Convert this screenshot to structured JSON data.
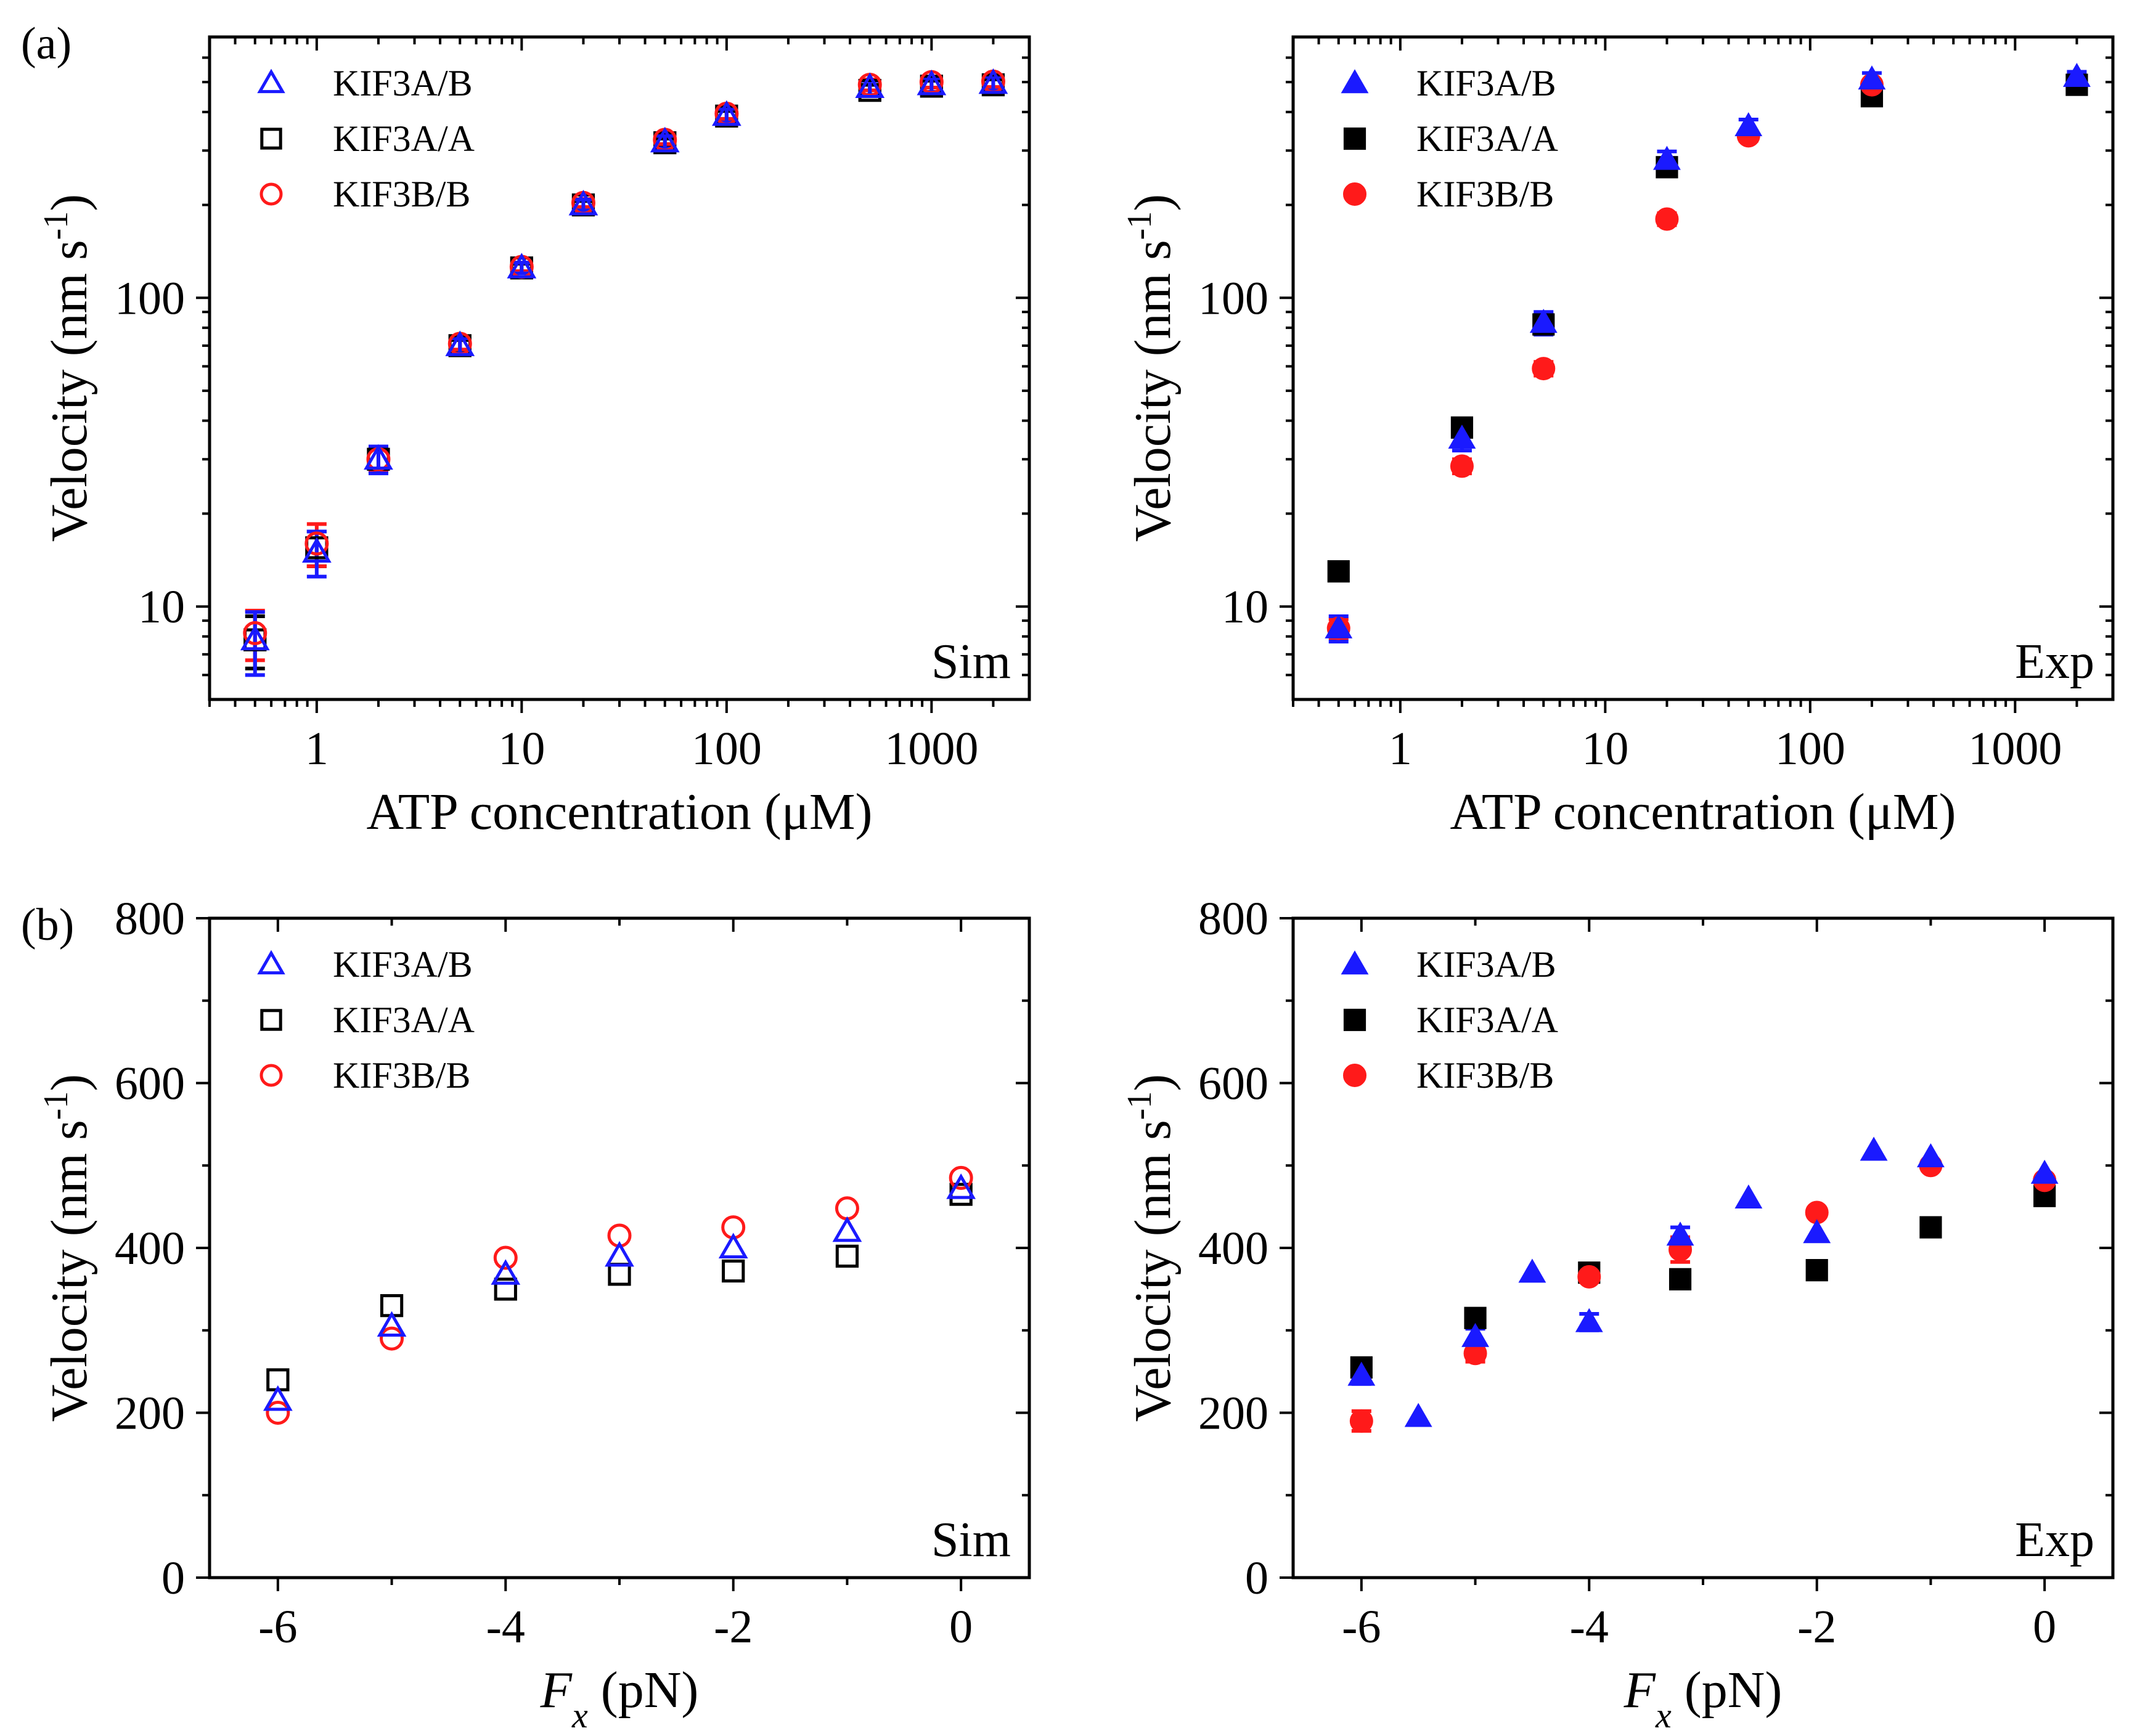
{
  "figure": {
    "panel_tags": [
      "(a)",
      "(b)"
    ],
    "series_colors": {
      "KIF3A/B": "#1a1aff",
      "KIF3A/A": "#000000",
      "KIF3B/B": "#ff1a1a"
    },
    "markers": {
      "KIF3A/B": "triangle",
      "KIF3A/A": "square",
      "KIF3B/B": "circle"
    }
  },
  "chart_data": [
    {
      "id": "a-sim",
      "type": "scatter",
      "panel_tag": "(a)",
      "corner_label": "Sim",
      "marker_fill": "open",
      "xlabel": "ATP concentration (μM)",
      "ylabel_text": "Velocity (nm s",
      "ylabel_sup": "-1",
      "ylabel_close": ")",
      "xscale": "log",
      "yscale": "log",
      "xlim": [
        0.3,
        3000
      ],
      "ylim": [
        5,
        700
      ],
      "xticks": [
        1,
        10,
        100,
        1000
      ],
      "xtick_labels": [
        "1",
        "10",
        "100",
        "1000"
      ],
      "yticks": [
        10,
        100
      ],
      "ytick_labels": [
        "10",
        "100"
      ],
      "legend_position": "top-left",
      "series": [
        {
          "name": "KIF3A/B",
          "points": [
            {
              "x": 0.5,
              "y": 7.8,
              "err": 1.8
            },
            {
              "x": 1,
              "y": 15,
              "err": 2.5
            },
            {
              "x": 2,
              "y": 30,
              "err": 3
            },
            {
              "x": 5,
              "y": 70,
              "err": 4
            },
            {
              "x": 10,
              "y": 125,
              "err": 5
            },
            {
              "x": 20,
              "y": 200,
              "err": 8
            },
            {
              "x": 50,
              "y": 320,
              "err": 15
            },
            {
              "x": 100,
              "y": 390,
              "err": 20
            },
            {
              "x": 500,
              "y": 480,
              "err": 25
            },
            {
              "x": 1000,
              "y": 490,
              "err": 25
            },
            {
              "x": 2000,
              "y": 495,
              "err": 25
            }
          ]
        },
        {
          "name": "KIF3A/A",
          "points": [
            {
              "x": 0.5,
              "y": 7.8,
              "err": 1.5
            },
            {
              "x": 1,
              "y": 15.5,
              "err": 2
            },
            {
              "x": 2,
              "y": 30,
              "err": 2.5
            },
            {
              "x": 5,
              "y": 70,
              "err": 3
            },
            {
              "x": 10,
              "y": 125,
              "err": 4
            },
            {
              "x": 20,
              "y": 200,
              "err": 6
            },
            {
              "x": 50,
              "y": 318,
              "err": 10
            },
            {
              "x": 100,
              "y": 388,
              "err": 15
            },
            {
              "x": 500,
              "y": 470,
              "err": 20
            },
            {
              "x": 1000,
              "y": 485,
              "err": 20
            },
            {
              "x": 2000,
              "y": 490,
              "err": 20
            }
          ]
        },
        {
          "name": "KIF3B/B",
          "points": [
            {
              "x": 0.5,
              "y": 8.2,
              "err": 1.5
            },
            {
              "x": 1,
              "y": 16,
              "err": 2.5
            },
            {
              "x": 2,
              "y": 30,
              "err": 2.5
            },
            {
              "x": 5,
              "y": 71,
              "err": 3
            },
            {
              "x": 10,
              "y": 126,
              "err": 4
            },
            {
              "x": 20,
              "y": 203,
              "err": 6
            },
            {
              "x": 50,
              "y": 325,
              "err": 10
            },
            {
              "x": 100,
              "y": 395,
              "err": 15
            },
            {
              "x": 500,
              "y": 490,
              "err": 20
            },
            {
              "x": 1000,
              "y": 500,
              "err": 20
            },
            {
              "x": 2000,
              "y": 502,
              "err": 20
            }
          ]
        }
      ]
    },
    {
      "id": "a-exp",
      "type": "scatter",
      "panel_tag": "",
      "corner_label": "Exp",
      "marker_fill": "solid",
      "xlabel": "ATP concentration (μM)",
      "ylabel_text": "Velocity (nm s",
      "ylabel_sup": "-1",
      "ylabel_close": ")",
      "xscale": "log",
      "yscale": "log",
      "xlim": [
        0.3,
        3000
      ],
      "ylim": [
        5,
        700
      ],
      "xticks": [
        1,
        10,
        100,
        1000
      ],
      "xtick_labels": [
        "1",
        "10",
        "100",
        "1000"
      ],
      "yticks": [
        10,
        100
      ],
      "ytick_labels": [
        "10",
        "100"
      ],
      "legend_position": "top-left",
      "series": [
        {
          "name": "KIF3A/B",
          "points": [
            {
              "x": 0.5,
              "y": 8.5,
              "err": 0.8
            },
            {
              "x": 2,
              "y": 35,
              "err": 3
            },
            {
              "x": 5,
              "y": 83,
              "err": 7
            },
            {
              "x": 20,
              "y": 280,
              "err": 18
            },
            {
              "x": 50,
              "y": 360,
              "err": 18
            },
            {
              "x": 200,
              "y": 510,
              "err": 25
            },
            {
              "x": 2000,
              "y": 520,
              "err": 20
            }
          ]
        },
        {
          "name": "KIF3A/A",
          "points": [
            {
              "x": 0.5,
              "y": 13,
              "err": 0.8
            },
            {
              "x": 2,
              "y": 38,
              "err": 2
            },
            {
              "x": 5,
              "y": 82,
              "err": 4
            },
            {
              "x": 20,
              "y": 265,
              "err": 15
            },
            {
              "x": 200,
              "y": 450,
              "err": 20
            },
            {
              "x": 2000,
              "y": 490,
              "err": 15
            }
          ]
        },
        {
          "name": "KIF3B/B",
          "points": [
            {
              "x": 0.5,
              "y": 8.5,
              "err": 0.6
            },
            {
              "x": 2,
              "y": 28.5,
              "err": 1.5
            },
            {
              "x": 5,
              "y": 59,
              "err": 3
            },
            {
              "x": 20,
              "y": 180,
              "err": 8
            },
            {
              "x": 50,
              "y": 335,
              "err": 12
            },
            {
              "x": 200,
              "y": 490,
              "err": 15
            }
          ]
        }
      ]
    },
    {
      "id": "b-sim",
      "type": "scatter",
      "panel_tag": "(b)",
      "corner_label": "Sim",
      "marker_fill": "open",
      "xlabel_italic": "F",
      "xlabel_sub": "x",
      "xlabel_rest": " (pN)",
      "ylabel_text": "Velocity (nm s",
      "ylabel_sup": "-1",
      "ylabel_close": ")",
      "xscale": "linear",
      "yscale": "linear",
      "xlim": [
        -6.6,
        0.6
      ],
      "ylim": [
        0,
        800
      ],
      "xticks": [
        -6,
        -4,
        -2,
        0
      ],
      "xtick_labels": [
        "-6",
        "-4",
        "-2",
        "0"
      ],
      "xminor": [
        -5,
        -3,
        -1
      ],
      "yticks": [
        0,
        200,
        400,
        600,
        800
      ],
      "ytick_labels": [
        "0",
        "200",
        "400",
        "600",
        "800"
      ],
      "yminor": [
        100,
        300,
        500,
        700
      ],
      "legend_position": "top-left",
      "series": [
        {
          "name": "KIF3A/B",
          "points": [
            {
              "x": -6,
              "y": 215
            },
            {
              "x": -5,
              "y": 305
            },
            {
              "x": -4,
              "y": 368
            },
            {
              "x": -3,
              "y": 390
            },
            {
              "x": -2,
              "y": 400
            },
            {
              "x": -1,
              "y": 420
            },
            {
              "x": 0,
              "y": 472
            }
          ]
        },
        {
          "name": "KIF3A/A",
          "points": [
            {
              "x": -6,
              "y": 240
            },
            {
              "x": -5,
              "y": 330
            },
            {
              "x": -4,
              "y": 350
            },
            {
              "x": -3,
              "y": 368
            },
            {
              "x": -2,
              "y": 372
            },
            {
              "x": -1,
              "y": 390
            },
            {
              "x": 0,
              "y": 465
            }
          ]
        },
        {
          "name": "KIF3B/B",
          "points": [
            {
              "x": -6,
              "y": 200
            },
            {
              "x": -5,
              "y": 290
            },
            {
              "x": -4,
              "y": 388
            },
            {
              "x": -3,
              "y": 415
            },
            {
              "x": -2,
              "y": 425
            },
            {
              "x": -1,
              "y": 448
            },
            {
              "x": 0,
              "y": 485
            }
          ]
        }
      ]
    },
    {
      "id": "b-exp",
      "type": "scatter",
      "panel_tag": "",
      "corner_label": "Exp",
      "marker_fill": "solid",
      "xlabel_italic": "F",
      "xlabel_sub": "x",
      "xlabel_rest": " (pN)",
      "ylabel_text": "Velocity (nm s",
      "ylabel_sup": "-1",
      "ylabel_close": ")",
      "xscale": "linear",
      "yscale": "linear",
      "xlim": [
        -6.6,
        0.6
      ],
      "ylim": [
        0,
        800
      ],
      "xticks": [
        -6,
        -4,
        -2,
        0
      ],
      "xtick_labels": [
        "-6",
        "-4",
        "-2",
        "0"
      ],
      "xminor": [
        -5,
        -3,
        -1
      ],
      "yticks": [
        0,
        200,
        400,
        600,
        800
      ],
      "ytick_labels": [
        "0",
        "200",
        "400",
        "600",
        "800"
      ],
      "yminor": [
        100,
        300,
        500,
        700
      ],
      "legend_position": "top-left",
      "series": [
        {
          "name": "KIF3A/B",
          "points": [
            {
              "x": -6,
              "y": 245,
              "err": 10
            },
            {
              "x": -5.5,
              "y": 195
            },
            {
              "x": -5,
              "y": 292,
              "err": 10
            },
            {
              "x": -4.5,
              "y": 370
            },
            {
              "x": -4,
              "y": 310,
              "err": 10
            },
            {
              "x": -3.2,
              "y": 415,
              "err": 10
            },
            {
              "x": -2.6,
              "y": 460
            },
            {
              "x": -2,
              "y": 418
            },
            {
              "x": -1.5,
              "y": 518
            },
            {
              "x": -1,
              "y": 510
            },
            {
              "x": 0,
              "y": 490
            }
          ]
        },
        {
          "name": "KIF3A/A",
          "points": [
            {
              "x": -6,
              "y": 255
            },
            {
              "x": -5,
              "y": 315
            },
            {
              "x": -4,
              "y": 370
            },
            {
              "x": -3.2,
              "y": 362
            },
            {
              "x": -2,
              "y": 373
            },
            {
              "x": -1,
              "y": 425
            },
            {
              "x": 0,
              "y": 463
            }
          ]
        },
        {
          "name": "KIF3B/B",
          "points": [
            {
              "x": -6,
              "y": 190,
              "err": 12
            },
            {
              "x": -5,
              "y": 272,
              "err": 10
            },
            {
              "x": -4,
              "y": 365
            },
            {
              "x": -3.2,
              "y": 398,
              "err": 15
            },
            {
              "x": -2,
              "y": 443
            },
            {
              "x": -1,
              "y": 500
            },
            {
              "x": 0,
              "y": 482
            }
          ]
        }
      ]
    }
  ]
}
